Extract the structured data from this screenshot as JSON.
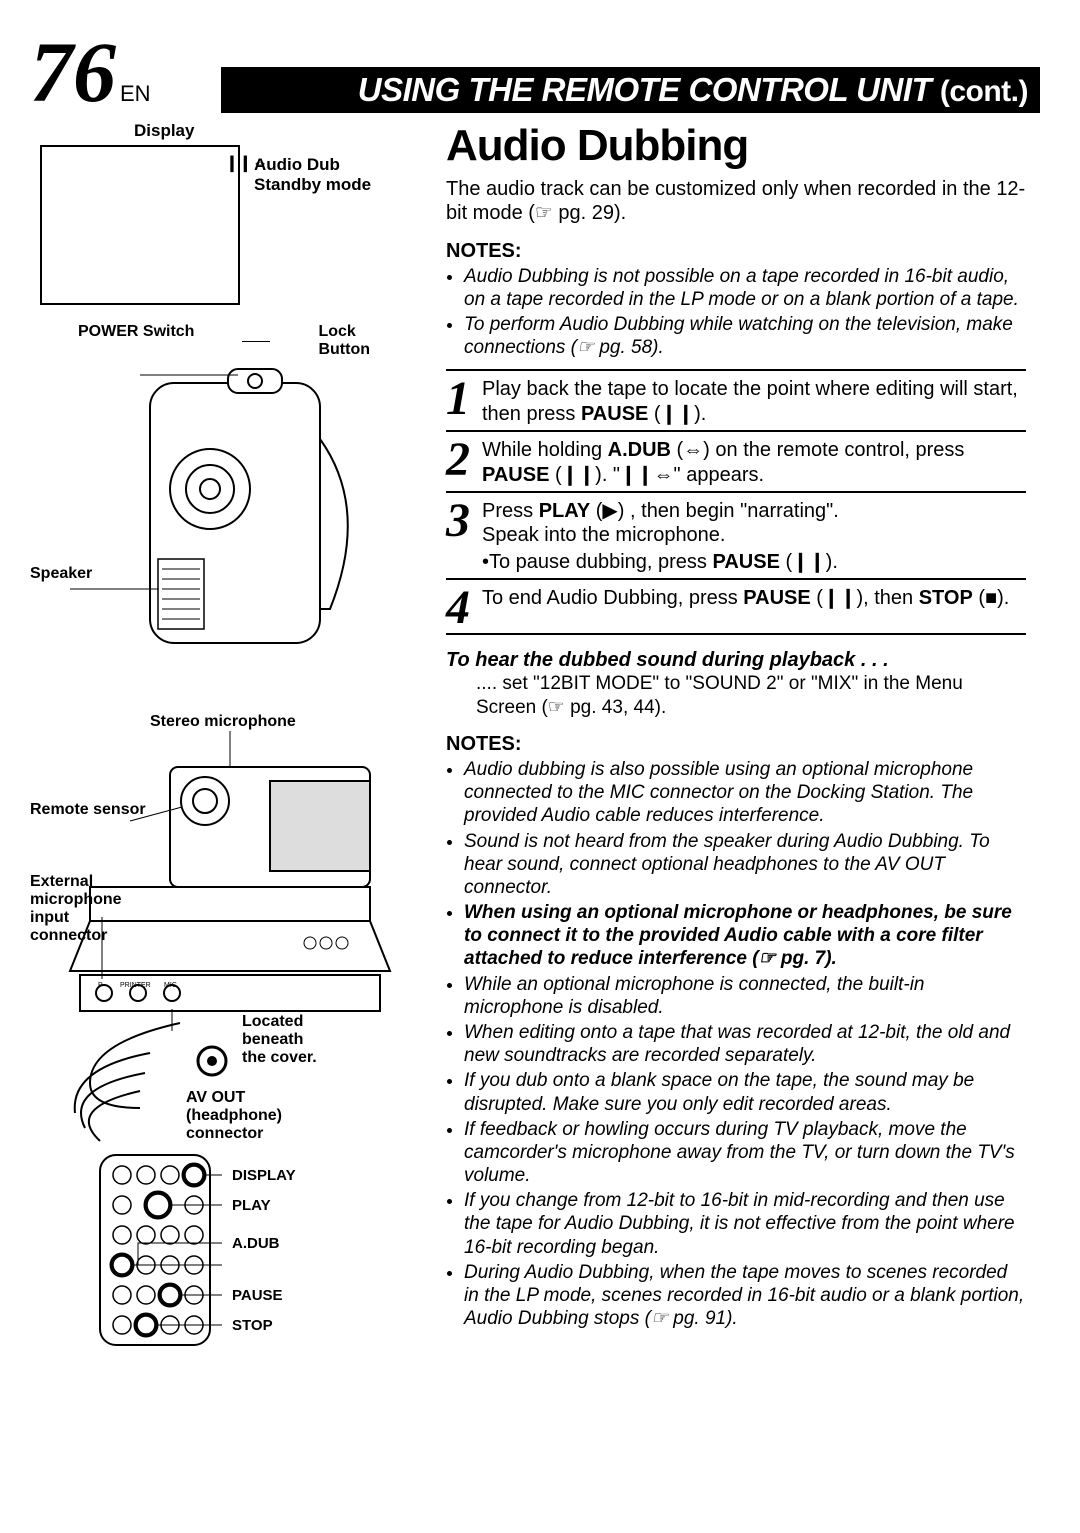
{
  "page": {
    "number": "76",
    "lang": "EN"
  },
  "title": {
    "main": "USING THE REMOTE CONTROL UNIT",
    "cont": "(cont.)"
  },
  "left": {
    "display_label": "Display",
    "audio_dub_mode": "Audio Dub\nStandby mode",
    "icon_chars": "❙❙",
    "power_switch": "POWER Switch",
    "lock_button": "Lock\nButton",
    "speaker": "Speaker",
    "stereo_mic": "Stereo microphone",
    "remote_sensor": "Remote sensor",
    "ext_mic": "External\nmicrophone\ninput connector",
    "located": "Located\nbeneath\nthe cover.",
    "av_out": "AV OUT\n(headphone)\nconnector",
    "remote_buttons": [
      "DISPLAY",
      "PLAY",
      "A.DUB",
      "PAUSE",
      "STOP"
    ]
  },
  "right": {
    "h2": "Audio Dubbing",
    "intro": "The audio track can be customized only when recorded in the 12-bit mode (☞ pg. 29).",
    "notes1_hd": "NOTES:",
    "notes1": [
      "Audio Dubbing is not possible on a tape recorded in 16-bit audio, on a tape recorded in the LP mode or on a blank portion of a tape.",
      "To perform Audio Dubbing while watching on the television, make connections (☞ pg. 58)."
    ],
    "steps": [
      {
        "n": "1",
        "t": "Play back the tape to locate the point where editing will start, then press <b>PAUSE</b> (❙❙)."
      },
      {
        "n": "2",
        "t": "While holding <b>A.DUB</b> (⇔) on the remote control, press <b>PAUSE</b> (❙❙). \"❙❙⇔\" appears."
      },
      {
        "n": "3",
        "t": "Press <b>PLAY</b> (▶) , then begin \"narrating\".<br>Speak into the microphone.<div class=\"sub\">•To pause dubbing, press <b>PAUSE</b> (❙❙).</div>"
      },
      {
        "n": "4",
        "t": "To end Audio Dubbing, press <b>PAUSE</b> (❙❙), then <b>STOP</b> (■)."
      }
    ],
    "playback_hd": "To hear the dubbed sound during playback . . .",
    "playback_body": ".... set \"12BIT MODE\" to \"SOUND 2\" or \"MIX\" in the Menu Screen (☞ pg. 43, 44).",
    "notes2_hd": "NOTES:",
    "notes2": [
      {
        "text": "Audio dubbing is also possible using an optional microphone connected to the MIC connector on the Docking Station. The provided Audio cable reduces interference."
      },
      {
        "text": "Sound is not heard from the speaker during Audio Dubbing. To hear sound, connect optional headphones to the AV OUT connector."
      },
      {
        "text": "When using an optional microphone or headphones, be sure to connect it to the provided Audio cable with a core filter attached to reduce interference (☞ pg. 7).",
        "bold": true
      },
      {
        "text": "While an optional microphone is connected, the built-in microphone is disabled."
      },
      {
        "text": "When editing onto a tape that was recorded at 12-bit, the old and new soundtracks are recorded separately."
      },
      {
        "text": "If you dub onto a blank space on the tape, the sound may be disrupted. Make sure you only edit recorded areas."
      },
      {
        "text": "If feedback or howling occurs during TV playback, move the camcorder's microphone away from the TV, or turn down the TV's volume."
      },
      {
        "text": "If you change from 12-bit to 16-bit  in mid-recording and then use the tape for Audio Dubbing, it is not effective from the point where 16-bit recording began."
      },
      {
        "text": "During Audio Dubbing, when the tape moves to scenes recorded in the LP mode, scenes recorded in 16-bit audio or a blank portion, Audio Dubbing stops (☞ pg. 91)."
      }
    ]
  },
  "style": {
    "accent": "#000000",
    "bg": "#ffffff",
    "step_font": "Times New Roman",
    "body_font": "Helvetica"
  }
}
